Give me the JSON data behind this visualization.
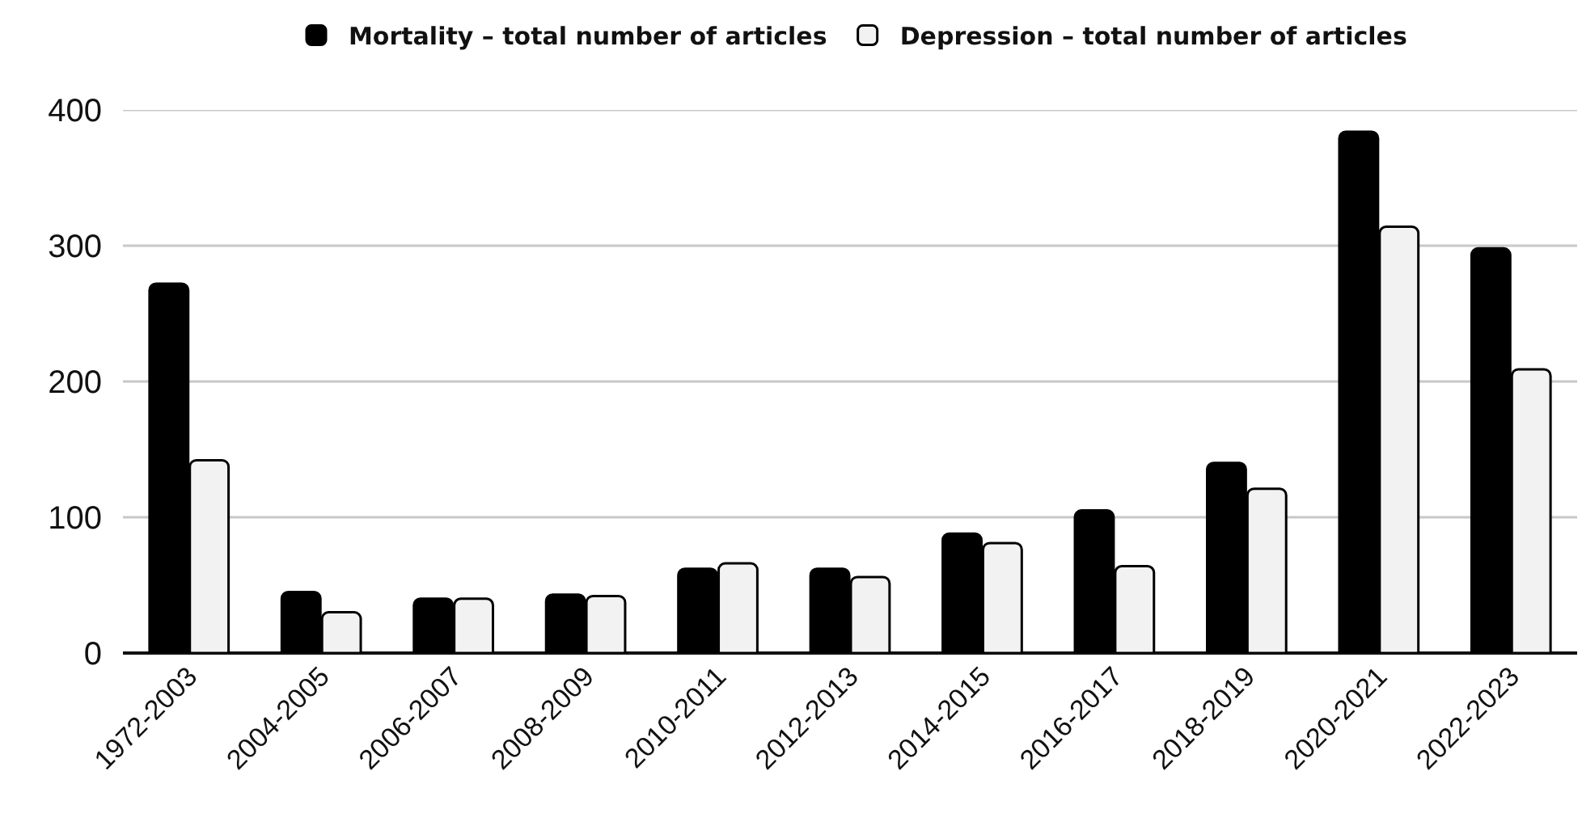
{
  "chart_data": {
    "type": "bar",
    "categories": [
      "1972-2003",
      "2004-2005",
      "2006-2007",
      "2008-2009",
      "2010-2011",
      "2012-2013",
      "2014-2015",
      "2016-2017",
      "2018-2019",
      "2020-2021",
      "2022-2023"
    ],
    "series": [
      {
        "name": "Mortality – total number of articles",
        "color": "#000000",
        "values": [
          272,
          45,
          40,
          43,
          62,
          62,
          88,
          105,
          140,
          384,
          298
        ]
      },
      {
        "name": "Depression – total number of articles",
        "color": "#f2f2f2",
        "values": [
          142,
          30,
          40,
          42,
          66,
          56,
          81,
          64,
          121,
          314,
          209
        ]
      }
    ],
    "ylim": [
      0,
      400
    ],
    "yticks": [
      0,
      100,
      200,
      300,
      400
    ],
    "grid": "y",
    "legend": "top"
  }
}
